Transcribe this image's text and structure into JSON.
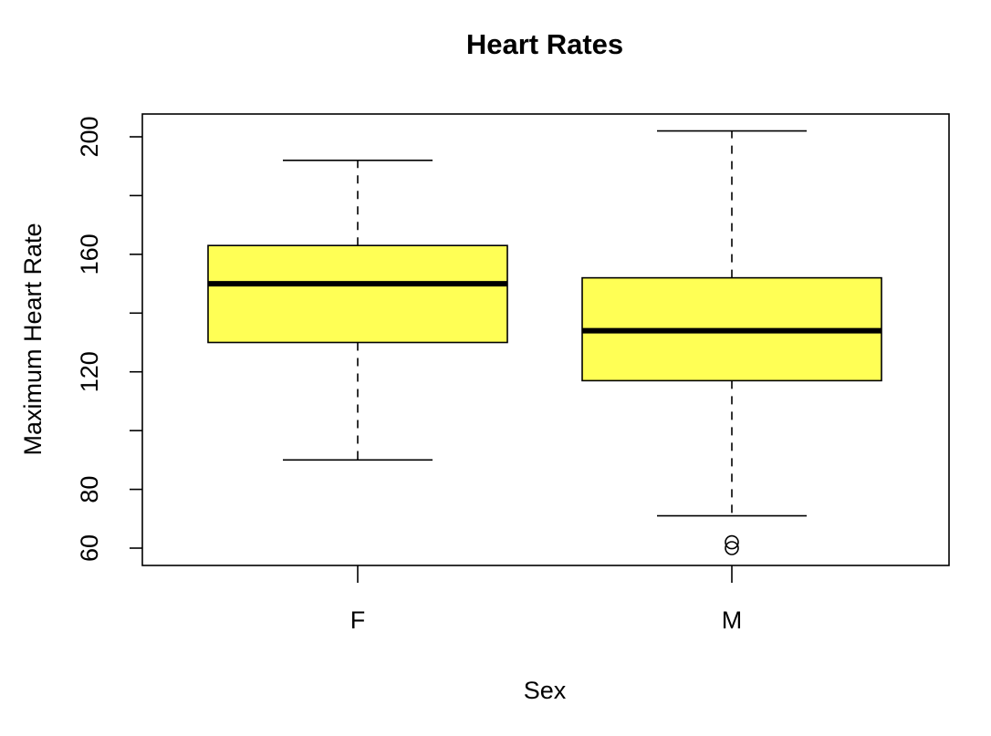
{
  "chart_data": {
    "type": "boxplot",
    "title": "Heart Rates",
    "xlabel": "Sex",
    "ylabel": "Maximum Heart Rate",
    "categories": [
      "F",
      "M"
    ],
    "y_ticks": [
      60,
      80,
      120,
      160,
      200
    ],
    "y_minor_ticks": [
      100,
      140,
      180
    ],
    "ylim": [
      54,
      208
    ],
    "box_fill": "#FFFF55",
    "boxes": [
      {
        "category": "F",
        "whisker_low": 90,
        "q1": 130,
        "median": 150,
        "q3": 163,
        "whisker_high": 192,
        "outliers": []
      },
      {
        "category": "M",
        "whisker_low": 71,
        "q1": 117,
        "median": 134,
        "q3": 152,
        "whisker_high": 202,
        "outliers": [
          62,
          60
        ]
      }
    ]
  }
}
